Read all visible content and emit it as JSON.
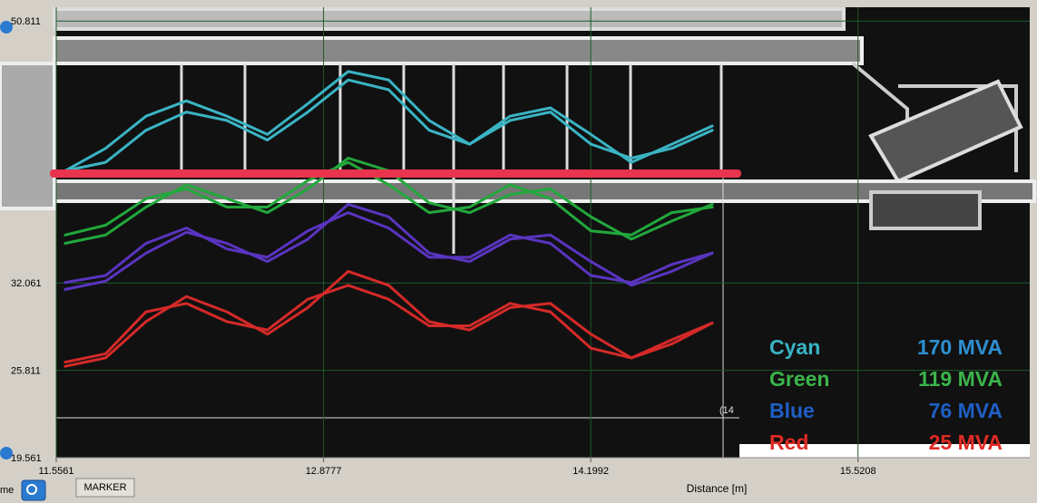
{
  "chart_data": {
    "type": "line",
    "x_label": "Distance [m]",
    "x": [
      11.6,
      11.8,
      12.0,
      12.2,
      12.4,
      12.6,
      12.8,
      13.0,
      13.2,
      13.4,
      13.6,
      13.8,
      14.0,
      14.2,
      14.4,
      14.6,
      14.8
    ],
    "xlim": [
      11.5561,
      16.37
    ],
    "xticks": [
      11.5561,
      12.8777,
      14.1992,
      15.5208
    ],
    "ylim": [
      19.561,
      51.8
    ],
    "yticks": [
      {
        "value": 50.811,
        "label": "50.811"
      },
      {
        "value": 32.061,
        "label": "32.061"
      },
      {
        "value": 25.811,
        "label": "25.811"
      },
      {
        "value": 19.561,
        "label": "19.561"
      }
    ],
    "grid": true,
    "series": [
      {
        "color": "#3ab4c4",
        "values": [
          40.1,
          41.7,
          44.0,
          45.1,
          44.0,
          42.7,
          44.9,
          47.2,
          46.6,
          43.7,
          42.0,
          44.0,
          44.6,
          42.7,
          40.7,
          42.0,
          43.3
        ]
      },
      {
        "color": "#3ab4c4",
        "values": [
          40.1,
          40.7,
          43.0,
          44.3,
          43.7,
          42.3,
          44.3,
          46.6,
          45.9,
          43.0,
          42.0,
          43.7,
          44.3,
          42.0,
          41.0,
          41.7,
          43.0
        ]
      },
      {
        "color": "#22a83c",
        "values": [
          34.9,
          35.5,
          37.5,
          39.1,
          38.1,
          37.1,
          38.8,
          41.0,
          40.1,
          37.8,
          37.1,
          38.4,
          38.8,
          36.8,
          35.2,
          36.5,
          37.7
        ]
      },
      {
        "color": "#22a83c",
        "values": [
          35.5,
          36.2,
          38.1,
          38.8,
          37.5,
          37.5,
          39.4,
          40.7,
          39.1,
          37.1,
          37.5,
          39.1,
          38.1,
          35.8,
          35.5,
          37.1,
          37.5
        ]
      },
      {
        "color": "#5a34c0",
        "values": [
          31.6,
          32.2,
          34.2,
          35.7,
          34.9,
          33.6,
          35.2,
          37.7,
          36.8,
          34.2,
          33.6,
          35.2,
          35.5,
          33.6,
          31.9,
          32.9,
          34.2
        ]
      },
      {
        "color": "#5a34c0",
        "values": [
          32.1,
          32.6,
          34.9,
          36.0,
          34.5,
          33.9,
          35.8,
          37.1,
          36.0,
          33.9,
          33.9,
          35.5,
          34.9,
          32.6,
          32.1,
          33.4,
          34.2
        ]
      },
      {
        "color": "#d42a28",
        "values": [
          26.1,
          26.7,
          29.3,
          31.1,
          30.0,
          28.4,
          30.3,
          32.9,
          31.9,
          29.3,
          28.7,
          30.3,
          30.6,
          28.4,
          26.7,
          27.7,
          29.2
        ]
      },
      {
        "color": "#d42a28",
        "values": [
          26.4,
          27.0,
          30.0,
          30.6,
          29.3,
          28.7,
          30.9,
          31.9,
          30.9,
          29.0,
          29.0,
          30.6,
          30.0,
          27.4,
          26.7,
          28.0,
          29.2
        ]
      }
    ],
    "legend": [
      {
        "label": "Cyan",
        "value_label": "170 MVA",
        "color": "#3ab4c4",
        "value_color": "#2e8fd0"
      },
      {
        "label": "Green",
        "value_label": "119 MVA",
        "color": "#3bb54a",
        "value_color": "#3bb54a"
      },
      {
        "label": "Blue",
        "value_label": "76 MVA",
        "color": "#1f5fc4",
        "value_color": "#1f5fc4"
      },
      {
        "label": "Red",
        "value_label": "25 MVA",
        "color": "#e02a24",
        "value_color": "#e02a24"
      }
    ],
    "cursor_label": "(14"
  },
  "toolbar": {
    "left_text": "me",
    "button": "MARKER"
  }
}
